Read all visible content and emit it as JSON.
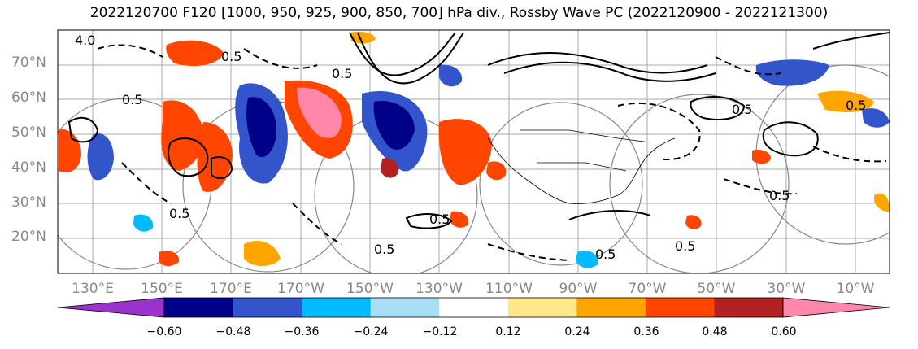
{
  "title": "2022120700 F120 [1000, 950, 925, 900, 850, 700] hPa div., Rossby Wave PC (2022120900 - 2022121300)",
  "latitude_labels": [
    "70°N",
    "60°N",
    "50°N",
    "40°N",
    "30°N",
    "20°N"
  ],
  "longitude_labels": [
    "130°E",
    "150°E",
    "170°E",
    "170°W",
    "150°W",
    "130°W",
    "110°W",
    "90°W",
    "70°W",
    "50°W",
    "30°W",
    "10°W"
  ],
  "contour_labels": [
    "4.0",
    "0.5",
    "0.5",
    "0.5",
    "0.5",
    "0.5",
    "0.5",
    "0.5",
    "0.5",
    "0.5",
    "0.5",
    "0.5"
  ],
  "colorbar": {
    "tick_labels": [
      "−0.60",
      "−0.48",
      "−0.36",
      "−0.24",
      "−0.12",
      "0.12",
      "0.24",
      "0.36",
      "0.48",
      "0.60"
    ],
    "colors": [
      "#9933cc",
      "#000088",
      "#3355cc",
      "#00bbff",
      "#aaddf8",
      "#ffffff",
      "#ffe88a",
      "#ffa500",
      "#ff4500",
      "#b22222",
      "#ff88aa"
    ]
  }
}
